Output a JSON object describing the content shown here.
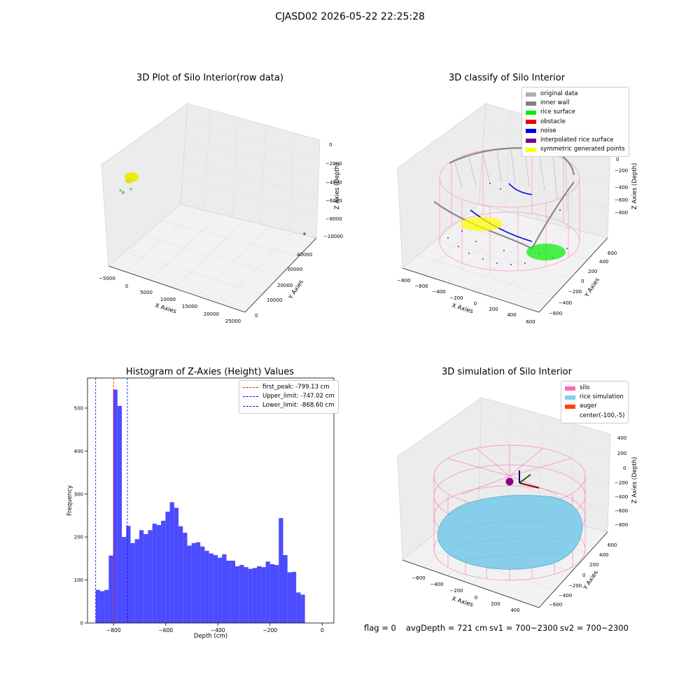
{
  "figure": {
    "suptitle": "CJASD02 2026-05-22 22:25:28",
    "footer": {
      "flag": "flag = 0",
      "avg": "avgDepth = 721 cm",
      "sv1": "sv1 = 700~2300",
      "sv2": "sv2 = 700~2300"
    }
  },
  "chart_data": [
    {
      "type": "scatter",
      "subtype": "3d",
      "title": "3D Plot of Silo Interior(row data)",
      "xlabel": "X Axies",
      "ylabel": "Y Axies",
      "zlabel": "Z Axies (Depth)",
      "xticks": [
        "−5000",
        "0",
        "5000",
        "10000",
        "15000",
        "20000",
        "25000"
      ],
      "yticks": [
        "0",
        "10000",
        "20000",
        "30000",
        "40000"
      ],
      "zticks": [
        "0",
        "−2000",
        "−4000",
        "−6000",
        "−8000",
        "−10000"
      ],
      "xlim": [
        -5000,
        25000
      ],
      "ylim": [
        0,
        40000
      ],
      "zlim": [
        -10000,
        0
      ],
      "series": [
        {
          "color": "#eaea10",
          "points": [
            [
              -700,
              36000,
              -2400
            ],
            [
              -600,
              37000,
              -2700
            ],
            [
              -500,
              36500,
              -2200
            ]
          ]
        },
        {
          "color": "#6fcf6f",
          "points": [
            [
              -1800,
              33000,
              -4800
            ],
            [
              -1500,
              34000,
              -4500
            ],
            [
              -500,
              35000,
              -4000
            ]
          ]
        },
        {
          "color": "#5a5a9a",
          "points": [
            [
              23500,
              40000,
              -9900
            ]
          ]
        }
      ]
    },
    {
      "type": "scatter",
      "subtype": "3d",
      "title": "3D classify of Silo Interior",
      "xlabel": "X Axies",
      "ylabel": "Y Axies",
      "zlabel": "Z Axies (Depth)",
      "xticks": [
        "−800",
        "−600",
        "−400",
        "−200",
        "0",
        "200",
        "400",
        "600"
      ],
      "yticks": [
        "−600",
        "−400",
        "−200",
        "0",
        "200",
        "400",
        "600"
      ],
      "zticks": [
        "200",
        "0",
        "−200",
        "−400",
        "−600",
        "−800"
      ],
      "legend_position": "top-right",
      "legend": [
        {
          "label": "original data",
          "color": "#b0b0b0"
        },
        {
          "label": "inner wall",
          "color": "#808080"
        },
        {
          "label": "rice surface",
          "color": "#00ee00"
        },
        {
          "label": "obstacle",
          "color": "#ee0000"
        },
        {
          "label": "noise",
          "color": "#0000ee"
        },
        {
          "label": "interpolated rice surface",
          "color": "#800080"
        },
        {
          "label": "symmetric generated points",
          "color": "#ffff00"
        }
      ]
    },
    {
      "type": "bar",
      "subtype": "histogram",
      "title": "Histogram of Z-Axies (Height) Values",
      "xlabel": "Depth (cm)",
      "ylabel": "Frequency",
      "xlim": [
        -900,
        45
      ],
      "ylim": [
        0,
        570
      ],
      "xticks": [
        -800,
        -600,
        -400,
        -200,
        0
      ],
      "xtick_labels": [
        "−800",
        "−600",
        "−400",
        "−200",
        "0"
      ],
      "yticks": [
        0,
        100,
        200,
        300,
        400,
        500
      ],
      "bin_start": -868.6,
      "bin_width": 16.72,
      "values": [
        77,
        74,
        77,
        157,
        543,
        505,
        200,
        226,
        186,
        195,
        216,
        207,
        216,
        231,
        228,
        238,
        259,
        281,
        268,
        225,
        210,
        180,
        186,
        188,
        178,
        168,
        162,
        158,
        152,
        160,
        145,
        145,
        132,
        135,
        130,
        126,
        128,
        132,
        130,
        143,
        137,
        135,
        244,
        158,
        118,
        119,
        71,
        66
      ],
      "bar_color": "#0000ff",
      "legend_position": "top-right",
      "vlines": [
        {
          "label": "first_peak: -799.13 cm",
          "x": -799.13,
          "color": "#ff0000"
        },
        {
          "label": "Upper_limit: -747.02 cm",
          "x": -747.02,
          "color": "#0000ff"
        },
        {
          "label": "Lower_limit: -868.60 cm",
          "x": -868.6,
          "color": "#0000ff"
        }
      ]
    },
    {
      "type": "surface",
      "subtype": "3d",
      "title": "3D simulation of Silo Interior",
      "xlabel": "X Axies",
      "ylabel": "Y Axies",
      "zlabel": "Z Axies (Depth)",
      "xticks": [
        "−600",
        "−400",
        "−200",
        "0",
        "200",
        "400"
      ],
      "yticks": [
        "−600",
        "−400",
        "−200",
        "0",
        "200",
        "400",
        "600"
      ],
      "zticks": [
        "400",
        "200",
        "0",
        "−200",
        "−400",
        "−600",
        "−800"
      ],
      "legend_position": "top-right",
      "legend": [
        {
          "label": "silo",
          "color": "#ff69b4"
        },
        {
          "label": "rice simulation",
          "color": "#87ceeb"
        },
        {
          "label": "auger",
          "color": "#ff4500"
        },
        {
          "label": "center(-100,-5)",
          "color": ""
        }
      ]
    }
  ]
}
